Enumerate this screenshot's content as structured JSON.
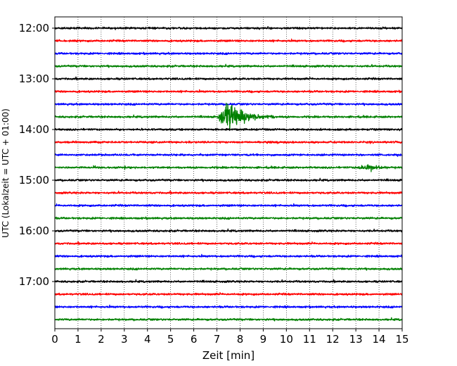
{
  "chart_data": {
    "type": "line",
    "title": "",
    "xlabel": "Zeit  [min]",
    "ylabel": "UTC (Lokalzeit = UTC + 01:00)",
    "xlim": [
      0,
      15
    ],
    "x_ticks": [
      0,
      1,
      2,
      3,
      4,
      5,
      6,
      7,
      8,
      9,
      10,
      11,
      12,
      13,
      14,
      15
    ],
    "x_tick_labels": [
      "0",
      "1",
      "2",
      "3",
      "4",
      "5",
      "6",
      "7",
      "8",
      "9",
      "10",
      "11",
      "12",
      "13",
      "14",
      "15"
    ],
    "x_grid": true,
    "y_tick_labels": [
      "12:00",
      "13:00",
      "14:00",
      "15:00",
      "16:00",
      "17:00"
    ],
    "y_tick_rows": [
      0,
      4,
      8,
      12,
      16,
      20
    ],
    "row_interval_minutes": 15,
    "row_colors": [
      "#000000",
      "#ff0000",
      "#0000ff",
      "#008000"
    ],
    "rows": [
      {
        "time": "12:00"
      },
      {
        "time": "12:15"
      },
      {
        "time": "12:30"
      },
      {
        "time": "12:45"
      },
      {
        "time": "13:00"
      },
      {
        "time": "13:15"
      },
      {
        "time": "13:30"
      },
      {
        "time": "13:45"
      },
      {
        "time": "14:00"
      },
      {
        "time": "14:15"
      },
      {
        "time": "14:30"
      },
      {
        "time": "14:45"
      },
      {
        "time": "15:00"
      },
      {
        "time": "15:15"
      },
      {
        "time": "15:30"
      },
      {
        "time": "15:45"
      },
      {
        "time": "16:00"
      },
      {
        "time": "16:15"
      },
      {
        "time": "16:30"
      },
      {
        "time": "16:45"
      },
      {
        "time": "17:00"
      },
      {
        "time": "17:15"
      },
      {
        "time": "17:30"
      },
      {
        "time": "17:45"
      }
    ],
    "events": [
      {
        "row": 7,
        "start_min": 7.0,
        "peak_min": 7.5,
        "end_min": 9.5,
        "amplitude_rows": 2.4
      },
      {
        "row": 11,
        "start_min": 12.9,
        "peak_min": 13.6,
        "end_min": 14.4,
        "amplitude_rows": 0.45
      }
    ]
  }
}
